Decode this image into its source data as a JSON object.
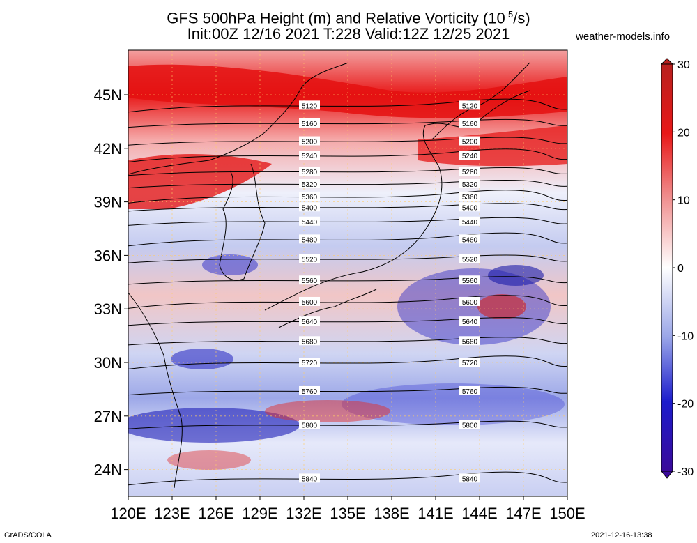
{
  "title_line1": "GFS 500hPa Height (m) and Relative Vorticity (10",
  "title_sup": "-5",
  "title_line1_end": "/s)",
  "title_line2": "Init:00Z 12/16 2021 T:228 Valid:12Z 12/25 2021",
  "brand": "weather-models.info",
  "footer_left": "GrADS/COLA",
  "footer_right": "2021-12-16-13:38",
  "map": {
    "lat_ticks": [
      "45N",
      "42N",
      "39N",
      "36N",
      "33N",
      "30N",
      "27N",
      "24N"
    ],
    "lat_values": [
      45,
      42,
      39,
      36,
      33,
      30,
      27,
      24
    ],
    "lon_ticks": [
      "120E",
      "123E",
      "126E",
      "129E",
      "132E",
      "135E",
      "138E",
      "141E",
      "144E",
      "147E",
      "150E"
    ],
    "lon_values": [
      120,
      123,
      126,
      129,
      132,
      135,
      138,
      141,
      144,
      147,
      150
    ],
    "lat_range": [
      22.5,
      47.5
    ],
    "lon_range": [
      120,
      150
    ],
    "contours": [
      {
        "label": "5120",
        "y": 44.4
      },
      {
        "label": "5160",
        "y": 43.4
      },
      {
        "label": "5200",
        "y": 42.4
      },
      {
        "label": "5240",
        "y": 41.6
      },
      {
        "label": "5280",
        "y": 40.7
      },
      {
        "label": "5320",
        "y": 40.0
      },
      {
        "label": "5360",
        "y": 39.3
      },
      {
        "label": "5400",
        "y": 38.7
      },
      {
        "label": "5440",
        "y": 37.9
      },
      {
        "label": "5480",
        "y": 36.9
      },
      {
        "label": "5520",
        "y": 35.8
      },
      {
        "label": "5560",
        "y": 34.6
      },
      {
        "label": "5600",
        "y": 33.4
      },
      {
        "label": "5640",
        "y": 32.3
      },
      {
        "label": "5680",
        "y": 31.2
      },
      {
        "label": "5720",
        "y": 30.0
      },
      {
        "label": "5760",
        "y": 28.4
      },
      {
        "label": "5800",
        "y": 26.5
      },
      {
        "label": "5840",
        "y": 23.5
      }
    ]
  },
  "colorbar": {
    "labels": [
      "30",
      "20",
      "10",
      "0",
      "-10",
      "-20",
      "-30"
    ],
    "values": [
      30,
      20,
      10,
      0,
      -10,
      -20,
      -30
    ],
    "colors": [
      "#b8201e",
      "#e81818",
      "#f09090",
      "#ffffff",
      "#9aa6e8",
      "#1c1ccc",
      "#3a0a9a"
    ]
  }
}
